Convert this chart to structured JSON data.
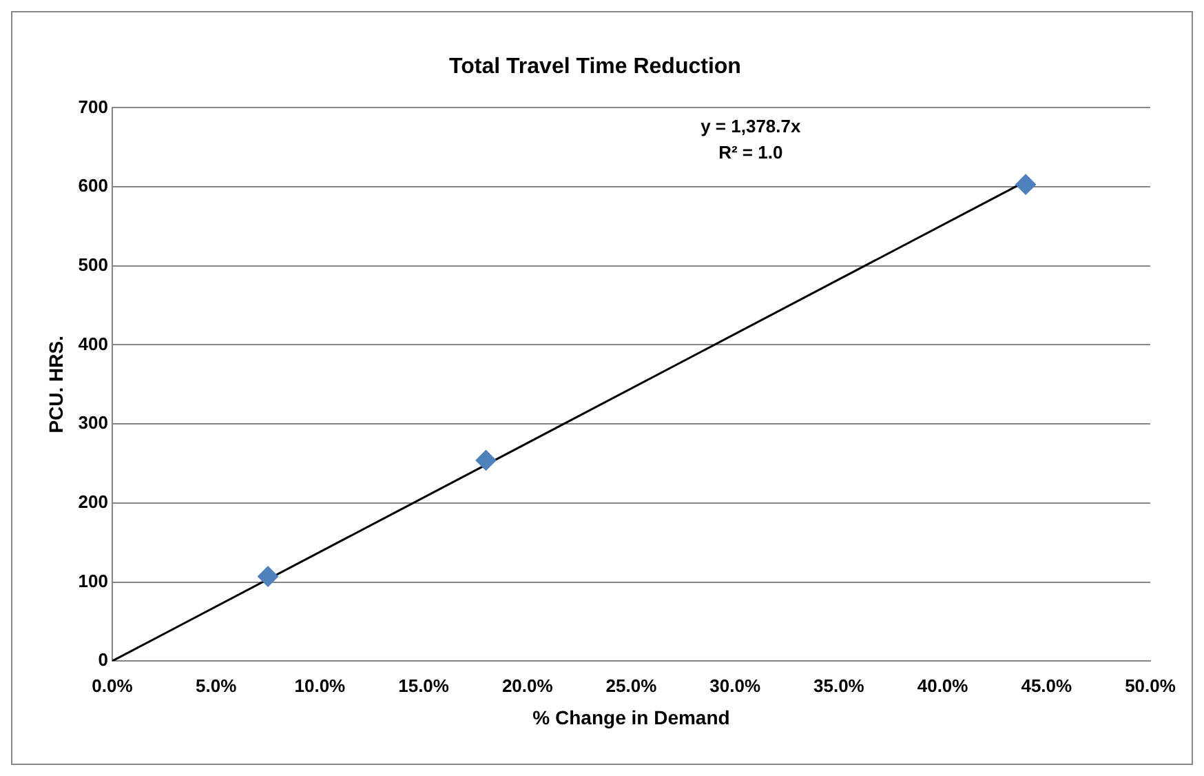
{
  "chart_data": {
    "type": "scatter",
    "title": "Total Travel Time Reduction",
    "xlabel": "% Change in Demand",
    "ylabel": "PCU. HRS.",
    "series": [
      {
        "color": "#4f81bd",
        "x": [
          7.5,
          18.0,
          44.0
        ],
        "values": [
          107,
          254,
          603
        ],
        "marker": "diamond"
      },
      {
        "type": "line",
        "color": "#000000",
        "x": [
          0,
          44.0
        ],
        "values": [
          0,
          607
        ],
        "marker": "none"
      }
    ],
    "xlim": [
      0,
      50
    ],
    "xticks": [
      {
        "value": 0,
        "label": "0.0%"
      },
      {
        "value": 5,
        "label": "5.0%"
      },
      {
        "value": 10,
        "label": "10.0%"
      },
      {
        "value": 15,
        "label": "15.0%"
      },
      {
        "value": 20,
        "label": "20.0%"
      },
      {
        "value": 25,
        "label": "25.0%"
      },
      {
        "value": 30,
        "label": "30.0%"
      },
      {
        "value": 35,
        "label": "35.0%"
      },
      {
        "value": 40,
        "label": "40.0%"
      },
      {
        "value": 45,
        "label": "45.0%"
      },
      {
        "value": 50,
        "label": "50.0%"
      }
    ],
    "ylim": [
      0,
      700
    ],
    "yticks": [
      0,
      100,
      200,
      300,
      400,
      500,
      600,
      700
    ],
    "grid": "y",
    "legend": false,
    "annotations": [
      "y = 1,378.7x",
      "R² = 1.0"
    ]
  }
}
